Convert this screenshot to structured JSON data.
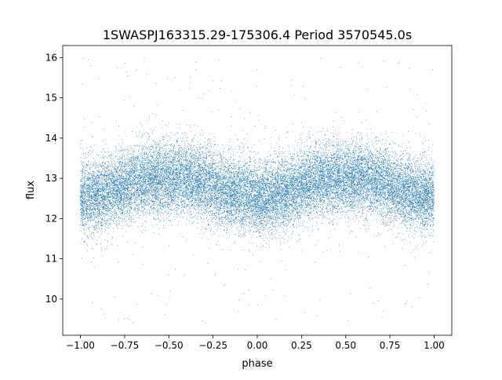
{
  "chart_data": {
    "type": "scatter",
    "title": "1SWASPJ163315.29-175306.4 Period 3570545.0s",
    "xlabel": "phase",
    "ylabel": "flux",
    "xlim": [
      -1.1,
      1.1
    ],
    "ylim": [
      9.1,
      16.3
    ],
    "xticks": [
      -1.0,
      -0.75,
      -0.5,
      -0.25,
      0.0,
      0.25,
      0.5,
      0.75,
      1.0
    ],
    "xtick_labels": [
      "−1.00",
      "−0.75",
      "−0.50",
      "−0.25",
      "0.00",
      "0.25",
      "0.50",
      "0.75",
      "1.00"
    ],
    "yticks": [
      10,
      11,
      12,
      13,
      14,
      15,
      16
    ],
    "ytick_labels": [
      "10",
      "11",
      "12",
      "13",
      "14",
      "15",
      "16"
    ],
    "grid": false,
    "legend": "none",
    "series": [
      {
        "color": "#1f77b4",
        "marker": "dot",
        "phase_range": [
          -1.0,
          1.0
        ],
        "mean_flux_profile": {
          "x": [
            -1.0,
            -0.9,
            -0.8,
            -0.7,
            -0.6,
            -0.5,
            -0.4,
            -0.3,
            -0.2,
            -0.1,
            0.0,
            0.1,
            0.2,
            0.3,
            0.4,
            0.5,
            0.6,
            0.7,
            0.8,
            0.9,
            1.0
          ],
          "y": [
            12.5,
            12.6,
            12.7,
            12.9,
            13.0,
            13.0,
            13.0,
            12.9,
            12.7,
            12.6,
            12.5,
            12.6,
            12.7,
            12.9,
            13.0,
            13.0,
            13.0,
            12.9,
            12.7,
            12.6,
            12.5
          ]
        },
        "core_flux_range": [
          11.0,
          14.0
        ],
        "full_flux_range": [
          9.4,
          16.0
        ],
        "point_count_approx": 22000
      }
    ]
  }
}
